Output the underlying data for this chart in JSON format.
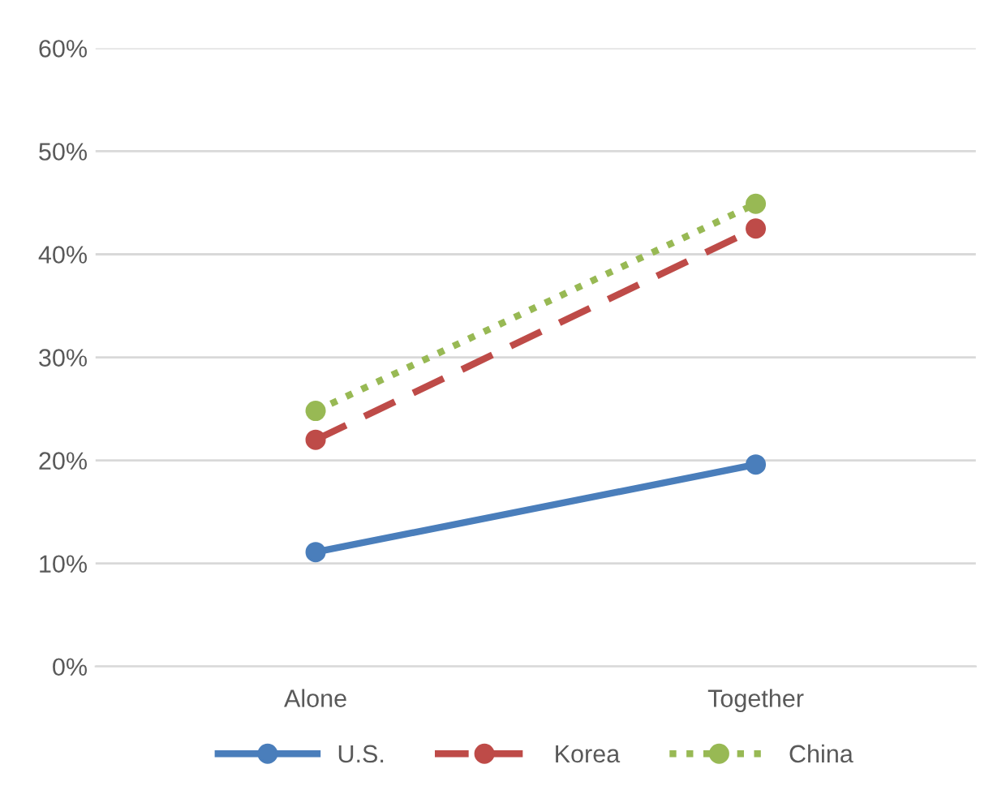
{
  "chart_data": {
    "type": "line",
    "categories": [
      "Alone",
      "Together"
    ],
    "series": [
      {
        "name": "U.S.",
        "color": "#4a7ebb",
        "values": [
          11.1,
          19.6
        ],
        "line_style": "solid"
      },
      {
        "name": "Korea",
        "color": "#be4b48",
        "values": [
          22.0,
          42.5
        ],
        "line_style": "dashed"
      },
      {
        "name": "China",
        "color": "#98b954",
        "values": [
          24.8,
          44.9
        ],
        "line_style": "dotted"
      }
    ],
    "ylim": [
      0,
      60
    ],
    "yticks": [
      {
        "value": 0,
        "label": "0%"
      },
      {
        "value": 10,
        "label": "10%"
      },
      {
        "value": 20,
        "label": "20%"
      },
      {
        "value": 30,
        "label": "30%"
      },
      {
        "value": 40,
        "label": "40%"
      },
      {
        "value": 50,
        "label": "50%"
      },
      {
        "value": 60,
        "label": "60%"
      }
    ],
    "grid": "y",
    "legend": "bottom",
    "marker": "circle"
  }
}
